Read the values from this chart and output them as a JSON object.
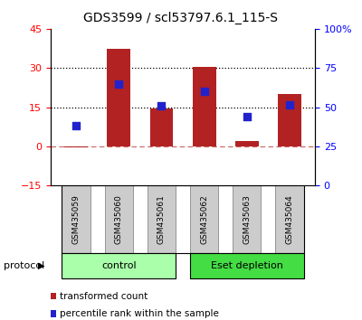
{
  "title": "GDS3599 / scl53797.6.1_115-S",
  "categories": [
    "GSM435059",
    "GSM435060",
    "GSM435061",
    "GSM435062",
    "GSM435063",
    "GSM435064"
  ],
  "bar_heights": [
    -0.4,
    37.5,
    14.5,
    30.5,
    2.0,
    20.0
  ],
  "percentile_values": [
    8.0,
    24.0,
    15.5,
    21.0,
    11.5,
    16.0
  ],
  "left_ylim": [
    -15,
    45
  ],
  "left_yticks": [
    -15,
    0,
    15,
    30,
    45
  ],
  "right_ylim": [
    0,
    100
  ],
  "right_yticks": [
    0,
    25,
    50,
    75,
    100
  ],
  "right_yticklabels": [
    "0",
    "25",
    "50",
    "75",
    "100%"
  ],
  "hlines": [
    15,
    30
  ],
  "bar_color": "#b22222",
  "dot_color": "#2222cc",
  "bar_width": 0.55,
  "dot_size": 28,
  "protocol_groups": [
    {
      "label": "control",
      "indices": [
        0,
        1,
        2
      ],
      "color": "#aaffaa"
    },
    {
      "label": "Eset depletion",
      "indices": [
        3,
        4,
        5
      ],
      "color": "#44dd44"
    }
  ],
  "protocol_label": "protocol",
  "legend_items": [
    {
      "color": "#b22222",
      "label": "transformed count"
    },
    {
      "color": "#2222cc",
      "label": "percentile rank within the sample"
    }
  ],
  "title_fontsize": 10,
  "xlabel_box_color": "#cccccc",
  "xlabel_box_edge": "#888888",
  "cat_fontsize": 6.5,
  "proto_fontsize": 8,
  "legend_fontsize": 7.5
}
